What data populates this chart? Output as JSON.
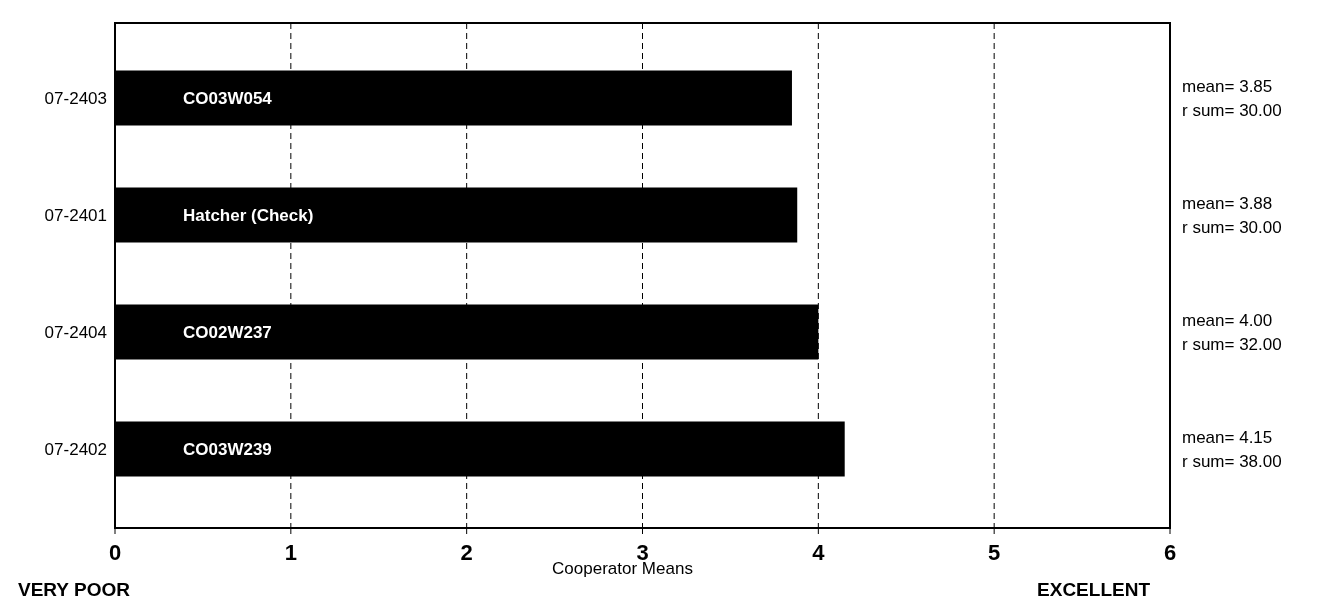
{
  "chart_data": {
    "type": "bar",
    "orientation": "horizontal",
    "xlabel": "Cooperator Means",
    "categories": [
      "07-2403",
      "07-2401",
      "07-2404",
      "07-2402"
    ],
    "values": [
      3.85,
      3.88,
      4.0,
      4.15
    ],
    "color": "#000000",
    "value_labels": [
      "mean= 3.85",
      "mean= 3.88",
      "mean= 4.00",
      "mean= 4.15"
    ],
    "xlim": [
      0,
      6
    ],
    "xticks": [
      0,
      1,
      2,
      3,
      4,
      5,
      6
    ],
    "grid": "x",
    "line_style": "dashed",
    "annotations": [
      "CO03W054",
      "Hatcher (Check)",
      "CO02W237",
      "CO03W239",
      "r sum= 30.00",
      "r sum= 30.00",
      "r sum= 32.00",
      "r sum= 38.00",
      "VERY POOR",
      "EXCELLENT"
    ]
  }
}
